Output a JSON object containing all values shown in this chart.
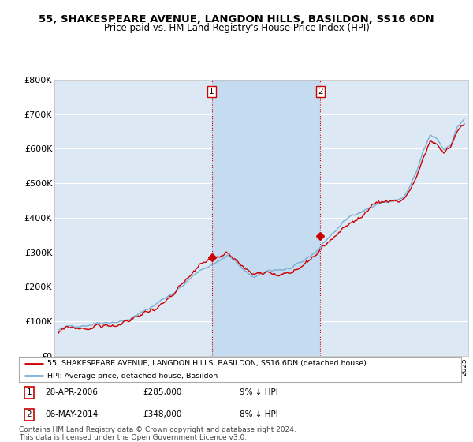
{
  "title": "55, SHAKESPEARE AVENUE, LANGDON HILLS, BASILDON, SS16 6DN",
  "subtitle": "Price paid vs. HM Land Registry's House Price Index (HPI)",
  "footer": "Contains HM Land Registry data © Crown copyright and database right 2024.\nThis data is licensed under the Open Government Licence v3.0.",
  "legend_line1": "55, SHAKESPEARE AVENUE, LANGDON HILLS, BASILDON, SS16 6DN (detached house)",
  "legend_line2": "HPI: Average price, detached house, Basildon",
  "annotation1": {
    "num": "1",
    "date": "28-APR-2006",
    "price": "£285,000",
    "hpi": "9% ↓ HPI",
    "year": 2006.33
  },
  "annotation2": {
    "num": "2",
    "date": "06-MAY-2014",
    "price": "£348,000",
    "hpi": "8% ↓ HPI",
    "year": 2014.37
  },
  "sale1_price": 285000,
  "sale2_price": 348000,
  "ylim": [
    0,
    800000
  ],
  "yticks": [
    0,
    100000,
    200000,
    300000,
    400000,
    500000,
    600000,
    700000,
    800000
  ],
  "ytick_labels": [
    "£0",
    "£100K",
    "£200K",
    "£300K",
    "£400K",
    "£500K",
    "£600K",
    "£700K",
    "£800K"
  ],
  "hpi_color": "#7bafd4",
  "price_color": "#cc0000",
  "bg_color": "#dce9f5",
  "shade_color": "#c5dbf0",
  "grid_color": "#ffffff",
  "annotation_color": "#cc0000",
  "title_fontsize": 9.5,
  "subtitle_fontsize": 8.5,
  "axis_fontsize": 8,
  "footer_fontsize": 6.5,
  "xlim_left": 1994.7,
  "xlim_right": 2025.3
}
